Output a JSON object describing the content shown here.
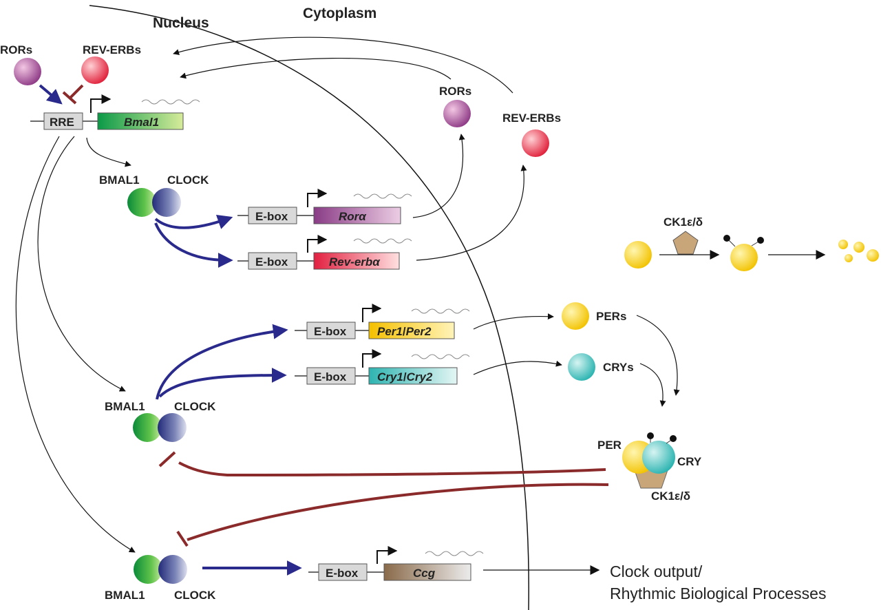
{
  "regions": {
    "nucleus": "Nucleus",
    "cytoplasm": "Cytoplasm"
  },
  "proteins": {
    "rors_nuc": "RORs",
    "reverbs_nuc": "REV-ERBs",
    "rors_cyto": "RORs",
    "reverbs_cyto": "REV-ERBs",
    "bmal1_a": "BMAL1",
    "clock_a": "CLOCK",
    "bmal1_b": "BMAL1",
    "clock_b": "CLOCK",
    "bmal1_c": "BMAL1",
    "clock_c": "CLOCK",
    "pers": "PERs",
    "crys": "CRYs",
    "per": "PER",
    "cry": "CRY",
    "ck1_top": "CK1ε/δ",
    "ck1_bottom": "CK1ε/δ"
  },
  "elements": {
    "rre": "RRE",
    "ebox_ror": "E-box",
    "ebox_reverb": "E-box",
    "ebox_per": "E-box",
    "ebox_cry": "E-box",
    "ebox_ccg": "E-box"
  },
  "genes": {
    "bmal1": "Bmal1",
    "rora": "Rorα",
    "reverba": "Rev-erbα",
    "per1": "Per1",
    "per_sep": "/",
    "per2": "Per2",
    "cry1": "Cry1",
    "cry_sep": "/",
    "cry2": "Cry2",
    "ccg": "Ccg"
  },
  "output": {
    "line1": "Clock output/",
    "line2": "Rhythmic Biological Processes"
  },
  "colors": {
    "activation": "#2a2a8c",
    "repression": "#8b2a2a",
    "arrow": "#111111"
  }
}
